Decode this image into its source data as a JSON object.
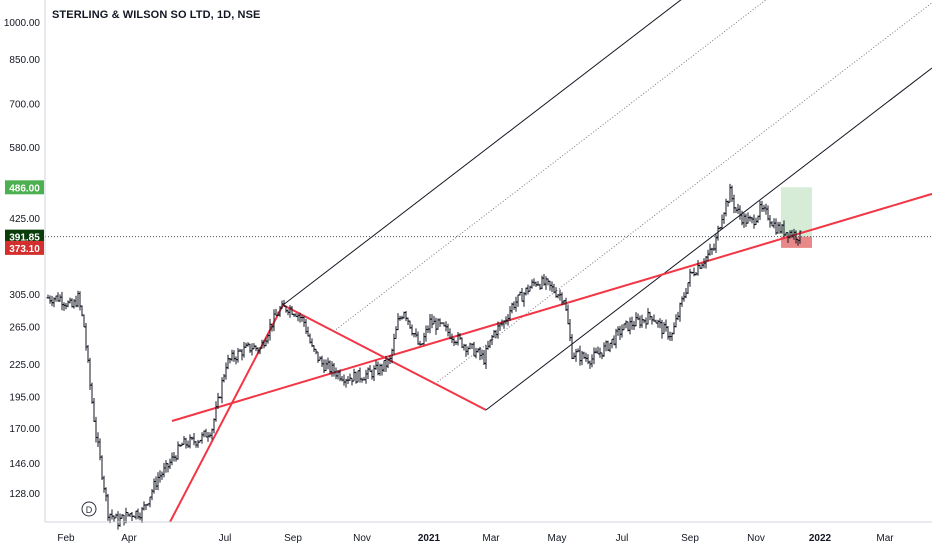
{
  "chart_data": {
    "type": "candlestick",
    "title": "STERLING & WILSON SO LTD, 1D, NSE",
    "y_scale": "log",
    "ylim": [
      113,
      1040
    ],
    "y_ticks": [
      "1000.00",
      "850.00",
      "700.00",
      "580.00",
      "425.00",
      "305.00",
      "265.00",
      "225.00",
      "195.00",
      "170.00",
      "146.00",
      "128.00"
    ],
    "x_ticks": [
      "Feb",
      "Apr",
      "Jul",
      "Sep",
      "Nov",
      "2021",
      "Mar",
      "May",
      "Jul",
      "Sep",
      "Nov",
      "2022",
      "Mar"
    ],
    "price_labels": {
      "target": "486.00",
      "current": "391.85",
      "stop": "373.10"
    },
    "current_price": 391.85,
    "target_price": 486.0,
    "stop_price": 373.1,
    "colors": {
      "candles": "#131722",
      "channel": "#131722",
      "median": "#f23645",
      "target_zone": "#c8e6c9",
      "stop_zone": "#e57373",
      "target_label_bg": "#4caf50",
      "current_label_bg": "#0b3d0b",
      "stop_label_bg": "#d32f2f"
    },
    "watermark_icon": "dividend-marker-icon",
    "watermark_letter": "D"
  }
}
